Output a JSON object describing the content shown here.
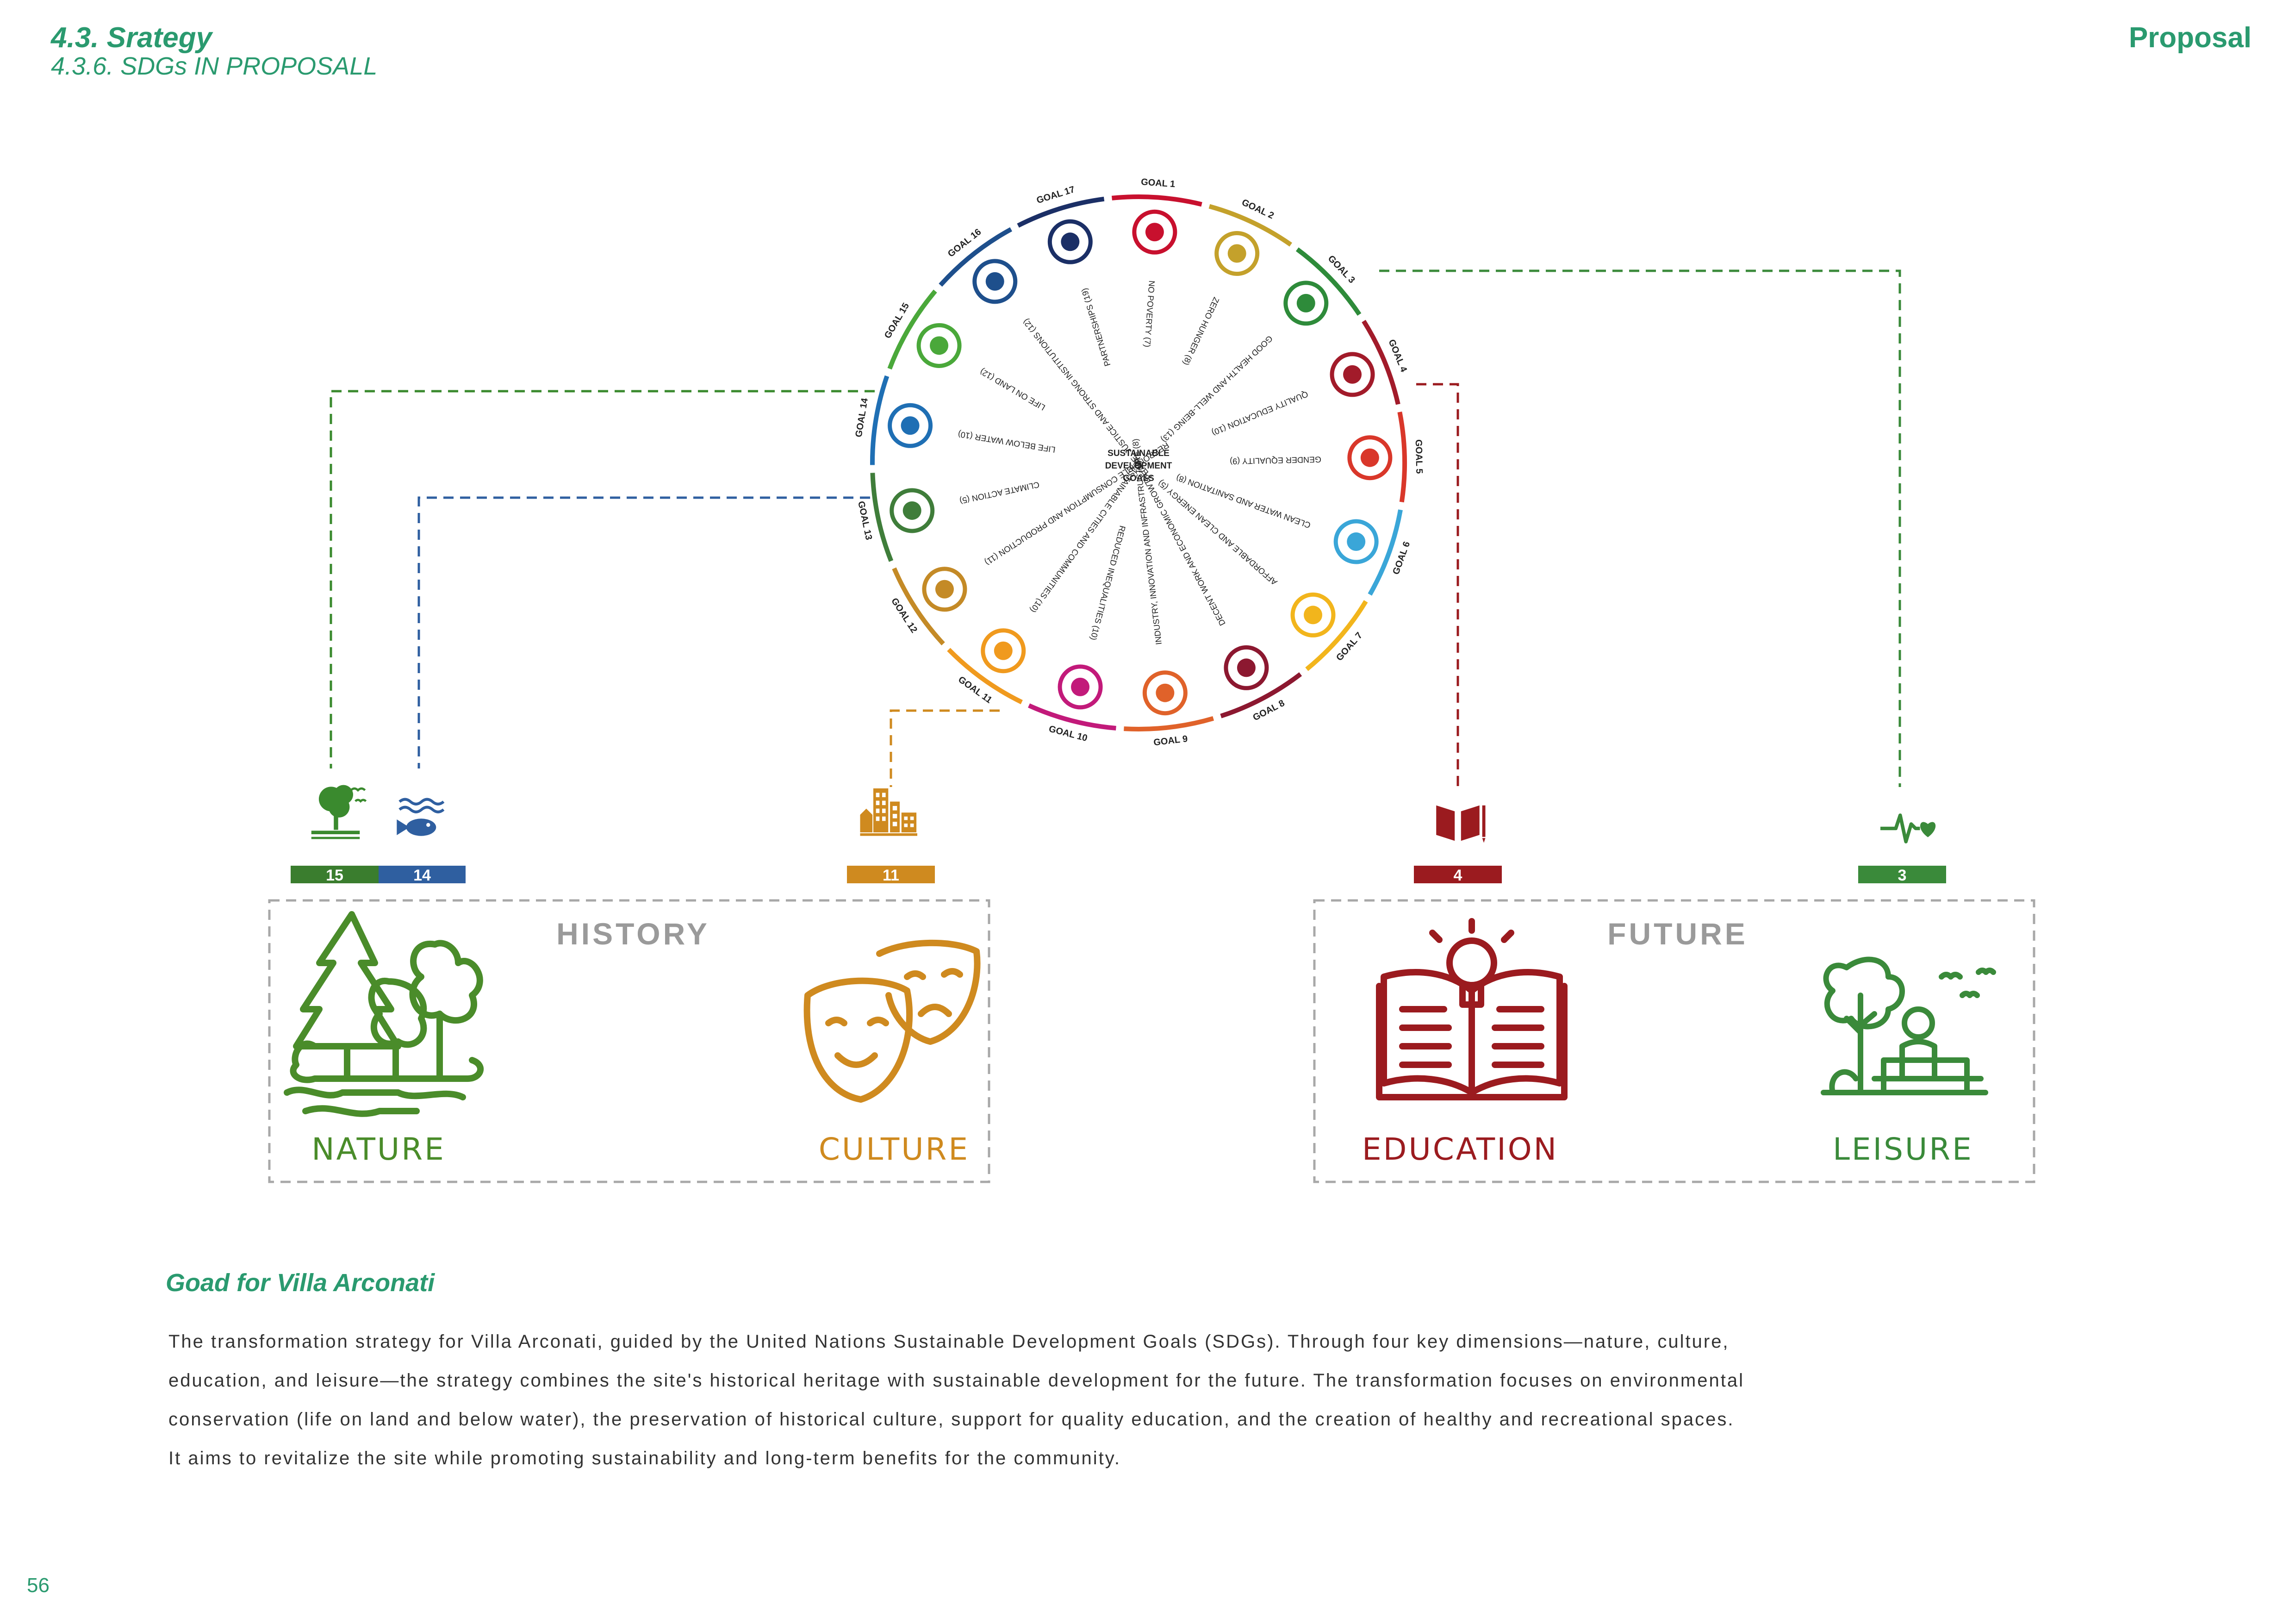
{
  "header": {
    "section": "4.3. Srategy",
    "subsection": "4.3.6. SDGs IN PROPOSALL",
    "right_label": "Proposal"
  },
  "colors": {
    "accent": "#2a9a6f",
    "nature_green": "#4a8c2a",
    "water_blue": "#2f5fa0",
    "culture_orange": "#cf8a1f",
    "education_red": "#9b1b1f",
    "leisure_green": "#3a8a3a",
    "frame_gray": "#a8a8a8"
  },
  "wheel": {
    "center_label": [
      "SUSTAINABLE",
      "DEVELOPMENT",
      "GOALS"
    ],
    "goals": [
      {
        "label": "GOAL 1",
        "name": "NO POVERTY (7)",
        "color": "#c8102e",
        "icon": "people-icon"
      },
      {
        "label": "GOAL 2",
        "name": "ZERO HUNGER (8)",
        "color": "#c4a12b",
        "icon": "bowl-icon"
      },
      {
        "label": "GOAL 3",
        "name": "GOOD HEALTH AND WELL-BEING (13)",
        "color": "#2e8b3a",
        "icon": "heartbeat-icon"
      },
      {
        "label": "GOAL 4",
        "name": "QUALITY EDUCATION (10)",
        "color": "#a21b2a",
        "icon": "book-icon"
      },
      {
        "label": "GOAL 5",
        "name": "GENDER EQUALITY (9)",
        "color": "#d9372a",
        "icon": "gender-icon"
      },
      {
        "label": "GOAL 6",
        "name": "CLEAN WATER AND SANITATION (8)",
        "color": "#3aa6d8",
        "icon": "water-drop-icon"
      },
      {
        "label": "GOAL 7",
        "name": "AFFORDABLE AND CLEAN ENERGY (5)",
        "color": "#f2b51c",
        "icon": "sun-power-icon"
      },
      {
        "label": "GOAL 8",
        "name": "DECENT WORK AND ECONOMIC GROWTH (12)",
        "color": "#8c1830",
        "icon": "growth-chart-icon"
      },
      {
        "label": "GOAL 9",
        "name": "INDUSTRY, INNOVATION AND INFRASTRUCTURE (8)",
        "color": "#e0622a",
        "icon": "cubes-icon"
      },
      {
        "label": "GOAL 10",
        "name": "REDUCED INEQUALITIES (10)",
        "color": "#c21a7a",
        "icon": "equality-icon"
      },
      {
        "label": "GOAL 11",
        "name": "SUSTAINABLE CITIES AND COMMUNITIES (10)",
        "color": "#f09a1e",
        "icon": "city-icon"
      },
      {
        "label": "GOAL 12",
        "name": "RESPONSIBLE CONSUMPTION AND PRODUCTION (11)",
        "color": "#c48a26",
        "icon": "infinity-icon"
      },
      {
        "label": "GOAL 13",
        "name": "CLIMATE ACTION (5)",
        "color": "#3f7d3a",
        "icon": "eye-globe-icon"
      },
      {
        "label": "GOAL 14",
        "name": "LIFE BELOW WATER (10)",
        "color": "#1f6fb4",
        "icon": "fish-icon"
      },
      {
        "label": "GOAL 15",
        "name": "LIFE ON LAND (12)",
        "color": "#4aa83a",
        "icon": "tree-icon"
      },
      {
        "label": "GOAL 16",
        "name": "PEACE, JUSTICE AND STRONG INSTITUTIONS (12)",
        "color": "#1e4f8c",
        "icon": "dove-icon"
      },
      {
        "label": "GOAL 17",
        "name": "PARTNERSHIPS (19)",
        "color": "#1b2f66",
        "icon": "flower-icon"
      }
    ]
  },
  "groups": [
    {
      "title": "HISTORY",
      "color": "#9a9a9a"
    },
    {
      "title": "FUTURE",
      "color": "#9a9a9a"
    }
  ],
  "badges": [
    {
      "number": "15",
      "color": "#3a7d2e",
      "icon": "tree-icon"
    },
    {
      "number": "14",
      "color": "#2f5fa0",
      "icon": "fish-icon"
    },
    {
      "number": "11",
      "color": "#cf8a1f",
      "icon": "city-icon"
    },
    {
      "number": "4",
      "color": "#9b1b1f",
      "icon": "book-icon"
    },
    {
      "number": "3",
      "color": "#3a8a3a",
      "icon": "heartbeat-icon"
    }
  ],
  "categories": [
    {
      "label": "NATURE",
      "color": "#4a8c2a",
      "icon": "forest-icon"
    },
    {
      "label": "CULTURE",
      "color": "#cf8a1f",
      "icon": "theatre-masks-icon"
    },
    {
      "label": "EDUCATION",
      "color": "#9b1b1f",
      "icon": "book-lightbulb-icon"
    },
    {
      "label": "LEISURE",
      "color": "#3a8a3a",
      "icon": "park-bench-icon"
    }
  ],
  "goal_section": {
    "title": "Goad for Villa Arconati",
    "lines": [
      "The transformation strategy for Villa Arconati, guided by the United Nations Sustainable Development Goals (SDGs). Through four key dimensions—nature, culture,",
      "education, and leisure—the strategy combines the site's historical heritage with sustainable development for the future. The transformation focuses on environmental",
      "conservation (life on land and below water), the preservation of historical culture, support for quality education, and the creation of healthy and recreational spaces.",
      "It aims to revitalize the site while promoting sustainability and long-term benefits for the community."
    ]
  },
  "page_number": "56"
}
